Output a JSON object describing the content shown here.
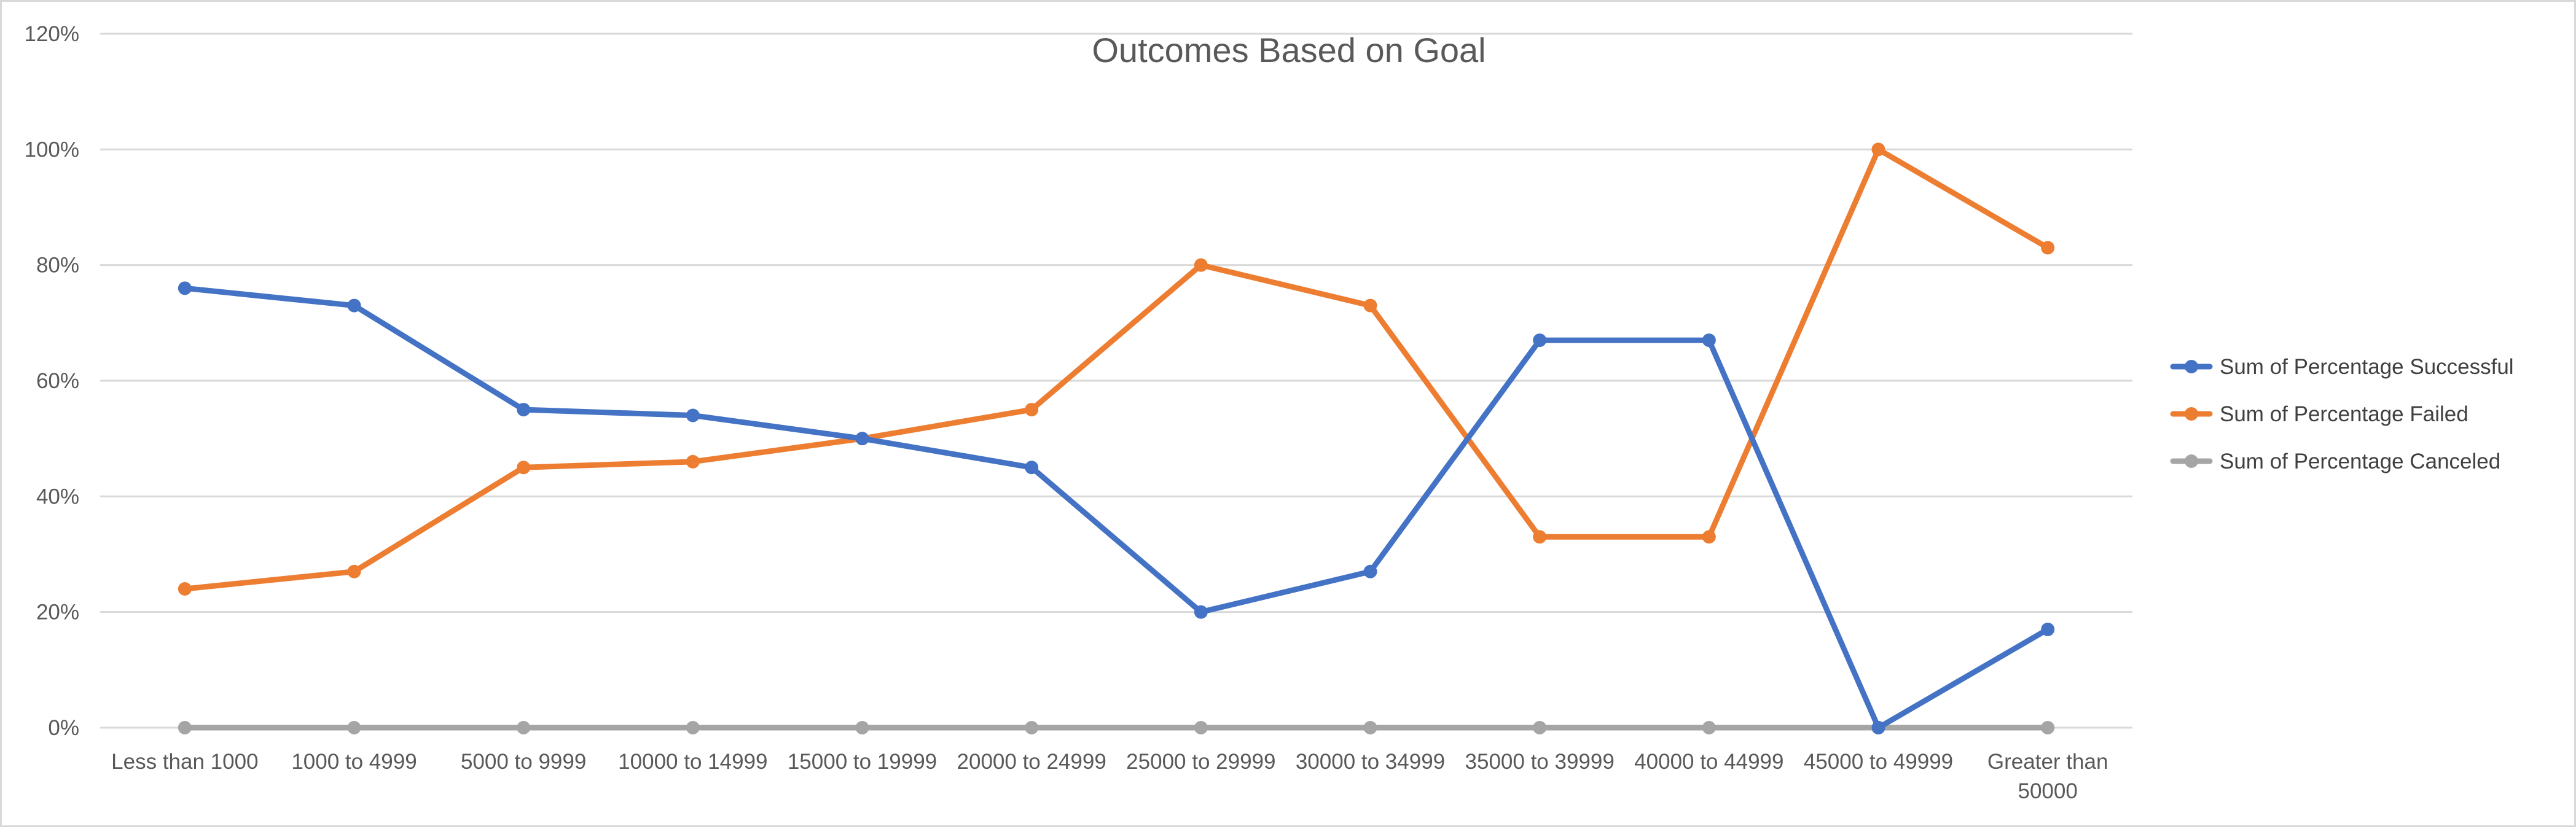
{
  "chart_data": {
    "type": "line",
    "title": "Outcomes Based on Goal",
    "xlabel": "",
    "ylabel": "",
    "categories": [
      "Less than 1000",
      "1000 to 4999",
      "5000 to 9999",
      "10000 to 14999",
      "15000 to 19999",
      "20000 to 24999",
      "25000 to 29999",
      "30000 to 34999",
      "35000 to 39999",
      "40000 to 44999",
      "45000 to 49999",
      "Greater than 50000"
    ],
    "series": [
      {
        "name": "Sum of Percentage Successful",
        "color": "#4472c4",
        "values": [
          0.76,
          0.73,
          0.55,
          0.54,
          0.5,
          0.45,
          0.2,
          0.27,
          0.67,
          0.67,
          0.0,
          0.17
        ]
      },
      {
        "name": "Sum of Percentage Failed",
        "color": "#ed7d31",
        "values": [
          0.24,
          0.27,
          0.45,
          0.46,
          0.5,
          0.55,
          0.8,
          0.73,
          0.33,
          0.33,
          1.0,
          0.83
        ]
      },
      {
        "name": "Sum of Percentage Canceled",
        "color": "#a5a5a5",
        "values": [
          0,
          0,
          0,
          0,
          0,
          0,
          0,
          0,
          0,
          0,
          0,
          0
        ]
      }
    ],
    "ylim": [
      0,
      1.2
    ],
    "yticks": [
      0,
      0.2,
      0.4,
      0.6,
      0.8,
      1.0,
      1.2
    ],
    "ytick_labels": [
      "0%",
      "20%",
      "40%",
      "60%",
      "80%",
      "100%",
      "120%"
    ],
    "grid": true,
    "legend_position": "right",
    "colors": {
      "grid": "#d9d9d9",
      "text": "#595959",
      "border": "#d9d9d9"
    }
  }
}
